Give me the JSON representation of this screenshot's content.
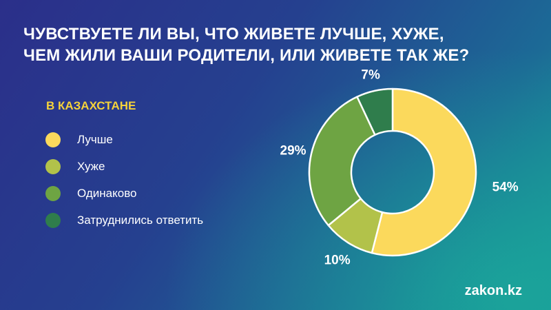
{
  "title_lines": [
    "ЧУВСТВУЕТЕ ЛИ ВЫ, ЧТО ЖИВЕТЕ ЛУЧШЕ, ХУЖЕ,",
    "ЧЕМ ЖИЛИ ВАШИ РОДИТЕЛИ, ИЛИ ЖИВЕТЕ ТАК ЖЕ?"
  ],
  "region": "В КАЗАХСТАНЕ",
  "brand": "zakon.kz",
  "chart_data": {
    "type": "pie",
    "donut": true,
    "categories": [
      "Лучше",
      "Хуже",
      "Одинаково",
      "Затруднились ответить"
    ],
    "values": [
      54,
      10,
      29,
      7
    ],
    "value_labels": [
      "54%",
      "10%",
      "29%",
      "7%"
    ],
    "unit": "%",
    "colors": [
      "#fbd95c",
      "#b2c24a",
      "#6ea443",
      "#2f7d4c"
    ],
    "legend_position": "left",
    "start": "top",
    "direction": "clockwise"
  }
}
